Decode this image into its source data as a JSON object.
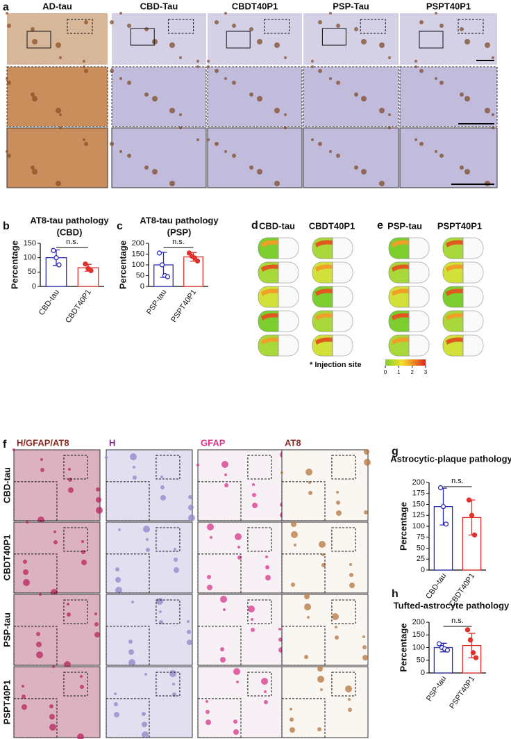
{
  "panels": {
    "a": {
      "label": "a",
      "columns": [
        "AD-tau",
        "CBD-Tau",
        "CBDT40P1",
        "PSP-Tau",
        "PSPT40P1"
      ]
    },
    "d": {
      "label": "d",
      "columns": [
        "CBD-tau",
        "CBDT40P1"
      ]
    },
    "e": {
      "label": "e",
      "columns": [
        "PSP-tau",
        "PSPT40P1"
      ]
    },
    "f": {
      "label": "f",
      "columns": [
        "H/GFAP/AT8",
        "H",
        "GFAP",
        "AT8"
      ],
      "rows": [
        "CBD-tau",
        "CBDT40P1",
        "PSP-tau",
        "PSPT40P1"
      ]
    }
  },
  "injection_legend": "* Injection site",
  "colorbar": {
    "range": [
      0,
      3
    ],
    "ticks": [
      0,
      1,
      2,
      3
    ]
  },
  "chart_data": [
    {
      "type": "bar",
      "panel": "b",
      "title": "AT8-tau pathology",
      "subtitle": "(CBD)",
      "y_label": "Percentage",
      "categories": [
        "CBD-tau",
        "CBDT40P1"
      ],
      "values": [
        100,
        65
      ],
      "errors": [
        27,
        12
      ],
      "points": [
        [
          125,
          100,
          75
        ],
        [
          78,
          62,
          55
        ]
      ],
      "colors": [
        "#2b2bb8",
        "#e0302b"
      ],
      "ylim": [
        0,
        150
      ],
      "yticks": [
        0,
        50,
        100,
        150
      ],
      "annotation": "n.s."
    },
    {
      "type": "bar",
      "panel": "c",
      "title": "AT8-tau pathology",
      "subtitle": "(PSP)",
      "y_label": "Percentage",
      "categories": [
        "PSP-tau",
        "PSPT40P1"
      ],
      "values": [
        100,
        137
      ],
      "errors": [
        58,
        20
      ],
      "points": [
        [
          155,
          100,
          50,
          45
        ],
        [
          155,
          140,
          132,
          118
        ]
      ],
      "colors": [
        "#2b2bb8",
        "#e0302b"
      ],
      "ylim": [
        0,
        200
      ],
      "yticks": [
        0,
        50,
        100,
        150,
        200
      ],
      "annotation": "n.s."
    },
    {
      "type": "bar",
      "panel": "g",
      "title": "Astrocytic-plaque pathology",
      "y_label": "Percentage",
      "categories": [
        "CBD-tau",
        "CBDT40P1"
      ],
      "values": [
        145,
        120
      ],
      "errors": [
        42,
        40
      ],
      "points": [
        [
          188,
          145,
          105
        ],
        [
          160,
          125,
          80
        ]
      ],
      "colors": [
        "#2b2bb8",
        "#e0302b"
      ],
      "ylim": [
        0,
        200
      ],
      "yticks": [
        0,
        25,
        50,
        75,
        100,
        125,
        150,
        175,
        200
      ],
      "annotation": "n.s."
    },
    {
      "type": "bar",
      "panel": "h",
      "title": "Tufted-astrocyte pathology",
      "y_label": "Percentage",
      "categories": [
        "PSP-tau",
        "PSPT40P1"
      ],
      "values": [
        100,
        108
      ],
      "errors": [
        17,
        48
      ],
      "points": [
        [
          115,
          100,
          95,
          90
        ],
        [
          170,
          130,
          80,
          60
        ]
      ],
      "colors": [
        "#2b2bb8",
        "#e0302b"
      ],
      "ylim": [
        0,
        200
      ],
      "yticks": [
        0,
        50,
        100,
        150,
        200
      ],
      "annotation": "n.s."
    }
  ]
}
